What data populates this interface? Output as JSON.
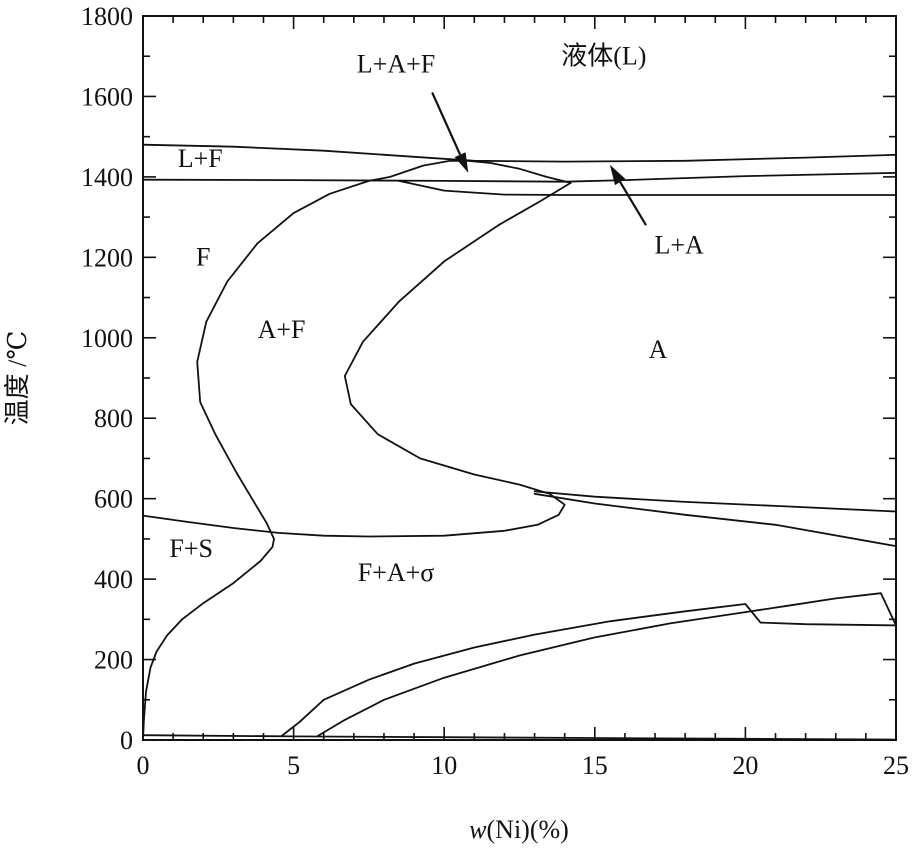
{
  "chart_data": {
    "type": "line",
    "xlabel": {
      "prefix": "w",
      "rest": "(Ni)(%)"
    },
    "ylabel": "温度 /℃",
    "xlim": [
      0,
      25
    ],
    "ylim": [
      0,
      1800
    ],
    "x_ticks": [
      {
        "value": 0,
        "label": "0"
      },
      {
        "value": 5,
        "label": "5"
      },
      {
        "value": 10,
        "label": "10"
      },
      {
        "value": 15,
        "label": "15"
      },
      {
        "value": 20,
        "label": "20"
      },
      {
        "value": 25,
        "label": "25"
      }
    ],
    "y_ticks": [
      {
        "value": 0,
        "label": "0"
      },
      {
        "value": 200,
        "label": "200"
      },
      {
        "value": 400,
        "label": "400"
      },
      {
        "value": 600,
        "label": "600"
      },
      {
        "value": 800,
        "label": "800"
      },
      {
        "value": 1000,
        "label": "1000"
      },
      {
        "value": 1200,
        "label": "1200"
      },
      {
        "value": 1400,
        "label": "1400"
      },
      {
        "value": 1600,
        "label": "1600"
      },
      {
        "value": 1800,
        "label": "1800"
      }
    ],
    "regions": [
      {
        "id": "liquid",
        "label": "液体(L)",
        "x": 15.3,
        "y": 1680
      },
      {
        "id": "l-plus-f",
        "label": "L+F",
        "x": 1.9,
        "y": 1425
      },
      {
        "id": "ferrite",
        "label": "F",
        "x": 2.0,
        "y": 1180
      },
      {
        "id": "a-plus-f",
        "label": "A+F",
        "x": 4.6,
        "y": 1000
      },
      {
        "id": "austenite",
        "label": "A",
        "x": 17.1,
        "y": 950
      },
      {
        "id": "f-plus-s",
        "label": "F+S",
        "x": 1.6,
        "y": 455
      },
      {
        "id": "f-plus-a-sigma",
        "label": "F+A+σ",
        "x": 8.4,
        "y": 395
      }
    ],
    "callouts": [
      {
        "id": "l-plus-a-plus-f",
        "label": "L+A+F",
        "label_x": 8.4,
        "label_y": 1660,
        "from": [
          9.6,
          1610
        ],
        "to": [
          10.8,
          1410
        ]
      },
      {
        "id": "l-plus-a",
        "label": "L+A",
        "label_x": 17.8,
        "label_y": 1210,
        "from": [
          16.7,
          1280
        ],
        "to": [
          15.5,
          1430
        ]
      }
    ],
    "series": [
      {
        "points": [
          [
            0,
            1480
          ],
          [
            3,
            1475
          ],
          [
            6,
            1465
          ],
          [
            9,
            1450
          ],
          [
            11,
            1440
          ],
          [
            14,
            1438
          ],
          [
            18,
            1440
          ],
          [
            22,
            1448
          ],
          [
            25,
            1455
          ]
        ]
      },
      {
        "points": [
          [
            0,
            1393
          ],
          [
            5,
            1392
          ],
          [
            10,
            1390
          ],
          [
            14,
            1388
          ],
          [
            16,
            1392
          ],
          [
            20,
            1402
          ],
          [
            25,
            1410
          ]
        ]
      },
      {
        "points": [
          [
            8.5,
            1390
          ],
          [
            10,
            1366
          ],
          [
            12,
            1356
          ],
          [
            14,
            1355
          ],
          [
            16,
            1355
          ],
          [
            20,
            1355
          ],
          [
            25,
            1355
          ]
        ]
      },
      {
        "points": [
          [
            7.5,
            1390
          ],
          [
            8.2,
            1400
          ],
          [
            9.3,
            1428
          ],
          [
            10.2,
            1440
          ],
          [
            10.8,
            1440
          ],
          [
            11.5,
            1435
          ],
          [
            12.5,
            1420
          ],
          [
            13.4,
            1400
          ],
          [
            14.2,
            1385
          ]
        ]
      },
      {
        "points": [
          [
            7.5,
            1390
          ],
          [
            6.2,
            1358
          ],
          [
            5.0,
            1310
          ],
          [
            3.8,
            1235
          ],
          [
            2.8,
            1140
          ],
          [
            2.1,
            1040
          ],
          [
            1.8,
            940
          ],
          [
            1.9,
            840
          ],
          [
            2.4,
            760
          ],
          [
            3.1,
            665
          ],
          [
            3.7,
            590
          ],
          [
            4.1,
            540
          ],
          [
            4.35,
            500
          ],
          [
            4.3,
            480
          ],
          [
            3.9,
            445
          ],
          [
            3.0,
            390
          ],
          [
            2.0,
            340
          ],
          [
            1.3,
            300
          ],
          [
            0.8,
            260
          ],
          [
            0.45,
            220
          ],
          [
            0.25,
            180
          ],
          [
            0.1,
            120
          ],
          [
            0.03,
            50
          ],
          [
            0,
            0
          ]
        ]
      },
      {
        "points": [
          [
            14.2,
            1385
          ],
          [
            13.2,
            1340
          ],
          [
            11.8,
            1280
          ],
          [
            10.0,
            1190
          ],
          [
            8.5,
            1090
          ],
          [
            7.3,
            990
          ],
          [
            6.7,
            905
          ],
          [
            6.9,
            835
          ],
          [
            7.8,
            760
          ],
          [
            9.2,
            700
          ],
          [
            11.0,
            660
          ],
          [
            12.5,
            635
          ],
          [
            13.5,
            612
          ],
          [
            14.0,
            585
          ],
          [
            13.8,
            560
          ],
          [
            13.1,
            535
          ],
          [
            12.0,
            520
          ],
          [
            10.0,
            508
          ],
          [
            7.5,
            506
          ],
          [
            6.0,
            508
          ],
          [
            4.5,
            515
          ],
          [
            3.0,
            527
          ],
          [
            1.5,
            542
          ],
          [
            0,
            558
          ]
        ]
      },
      {
        "points": [
          [
            13.0,
            618
          ],
          [
            15,
            605
          ],
          [
            18,
            592
          ],
          [
            21,
            582
          ],
          [
            25,
            568
          ]
        ]
      },
      {
        "points": [
          [
            13.0,
            612
          ],
          [
            15,
            588
          ],
          [
            18,
            560
          ],
          [
            21,
            535
          ],
          [
            25,
            482
          ]
        ]
      },
      {
        "points": [
          [
            4.6,
            10
          ],
          [
            5.2,
            45
          ],
          [
            6.0,
            100
          ],
          [
            7.5,
            150
          ],
          [
            9.0,
            190
          ],
          [
            11.0,
            230
          ],
          [
            13.0,
            262
          ],
          [
            15.5,
            295
          ],
          [
            18.0,
            320
          ],
          [
            20.0,
            338
          ],
          [
            20.5,
            292
          ],
          [
            22.0,
            288
          ],
          [
            25.0,
            285
          ]
        ]
      },
      {
        "points": [
          [
            5.8,
            10
          ],
          [
            6.7,
            50
          ],
          [
            8.0,
            100
          ],
          [
            10.0,
            155
          ],
          [
            12.5,
            210
          ],
          [
            15.0,
            255
          ],
          [
            17.5,
            290
          ],
          [
            20.0,
            318
          ],
          [
            21.5,
            335
          ],
          [
            23.0,
            352
          ],
          [
            24.5,
            365
          ],
          [
            25.0,
            285
          ]
        ]
      },
      {
        "points": [
          [
            0,
            12
          ],
          [
            5,
            9
          ],
          [
            10,
            7
          ],
          [
            15,
            5
          ],
          [
            20,
            3
          ],
          [
            25,
            1
          ]
        ]
      }
    ]
  }
}
